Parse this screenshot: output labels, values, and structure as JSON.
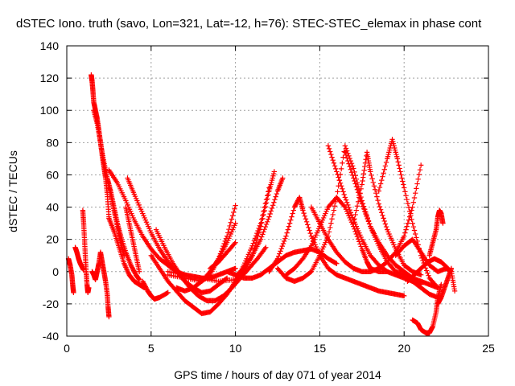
{
  "chart_data": {
    "type": "scatter",
    "title": "dSTEC Iono. truth (savo, Lon=321, Lat=-12, h=76): STEC-STEC_elemax in phase cont",
    "xlabel": "GPS time / hours of day 071 of year 2014",
    "ylabel": "dSTEC  / TECUs",
    "xlim": [
      0,
      25
    ],
    "ylim": [
      -40,
      140
    ],
    "xticks": [
      0,
      5,
      10,
      15,
      20,
      25
    ],
    "yticks": [
      -40,
      -20,
      0,
      20,
      40,
      60,
      80,
      100,
      120,
      140
    ],
    "grid": true,
    "marker": "+",
    "color": "#ff0000",
    "series": [
      {
        "x": [
          0.1,
          0.2,
          0.3,
          0.35,
          0.4
        ],
        "y": [
          8,
          4,
          -2,
          -8,
          -13
        ]
      },
      {
        "x": [
          0.5,
          0.6,
          0.7,
          0.8,
          0.9,
          1.0
        ],
        "y": [
          15,
          12,
          8,
          5,
          3,
          1
        ]
      },
      {
        "x": [
          0.95,
          1.0,
          1.05,
          1.1,
          1.15,
          1.2,
          1.25,
          1.3
        ],
        "y": [
          38,
          30,
          20,
          10,
          0,
          -8,
          -13,
          -10
        ]
      },
      {
        "x": [
          1.45,
          1.5,
          1.55,
          1.6,
          1.7,
          1.8,
          1.9,
          2.0,
          2.1,
          2.2,
          2.3,
          2.4,
          2.5
        ],
        "y": [
          122,
          118,
          112,
          105,
          100,
          95,
          88,
          80,
          72,
          65,
          58,
          48,
          34
        ]
      },
      {
        "x": [
          1.6,
          1.8,
          2.0,
          2.2,
          2.4,
          2.6,
          2.8,
          3.0,
          3.2,
          3.4
        ],
        "y": [
          100,
          92,
          80,
          68,
          58,
          48,
          38,
          28,
          18,
          10
        ]
      },
      {
        "x": [
          1.5,
          1.6,
          1.7,
          1.8,
          1.9,
          2.0,
          2.1,
          2.2,
          2.3,
          2.4,
          2.45,
          2.5
        ],
        "y": [
          0,
          -2,
          -5,
          0,
          5,
          12,
          6,
          0,
          -6,
          -14,
          -22,
          -28
        ]
      },
      {
        "x": [
          2.5,
          2.8,
          3.1,
          3.4,
          3.7,
          4.0,
          4.3,
          4.6
        ],
        "y": [
          33,
          25,
          15,
          5,
          -2,
          -6,
          -8,
          -10
        ]
      },
      {
        "x": [
          2.4,
          2.6,
          2.8,
          3.0,
          3.2,
          3.5,
          3.8,
          4.1,
          4.3
        ],
        "y": [
          58,
          50,
          40,
          30,
          22,
          12,
          4,
          -2,
          -5
        ]
      },
      {
        "x": [
          3.5,
          3.7,
          3.9,
          4.1,
          4.3
        ],
        "y": [
          40,
          30,
          20,
          10,
          0
        ]
      },
      {
        "x": [
          4.5,
          4.8,
          5.0,
          5.2,
          5.5,
          6.0
        ],
        "y": [
          -6,
          -12,
          -15,
          -17,
          -16,
          -13
        ]
      },
      {
        "x": [
          2.5,
          3.0,
          3.5,
          4.0,
          4.5,
          5.0,
          5.5,
          6.0,
          6.5,
          7.0,
          7.5,
          8.0,
          8.5,
          9.0,
          9.5,
          10.0
        ],
        "y": [
          63,
          55,
          44,
          32,
          22,
          14,
          8,
          4,
          0,
          -2,
          -3,
          -4,
          -4,
          -2,
          0,
          2
        ]
      },
      {
        "x": [
          3.6,
          4.0,
          4.5,
          5.0,
          5.5,
          6.0,
          6.5,
          7.0,
          7.5,
          8.0,
          8.5,
          9.0,
          9.5
        ],
        "y": [
          58,
          48,
          36,
          24,
          14,
          6,
          0,
          -6,
          -10,
          -13,
          -12,
          -8,
          -4
        ]
      },
      {
        "x": [
          5.3,
          5.8,
          6.3,
          6.8,
          7.3,
          7.8,
          8.3,
          8.8,
          9.3,
          9.8,
          10.3,
          10.8,
          11.3,
          11.8
        ],
        "y": [
          26,
          15,
          5,
          -3,
          -10,
          -15,
          -18,
          -18,
          -15,
          -10,
          -4,
          2,
          8,
          15
        ]
      },
      {
        "x": [
          5.0,
          5.5,
          6.0,
          6.5,
          7.0,
          7.5,
          8.0,
          8.5,
          9.0,
          9.5,
          10.0,
          10.5,
          11.0,
          11.5,
          12.0
        ],
        "y": [
          10,
          2,
          -6,
          -12,
          -18,
          -22,
          -26,
          -25,
          -20,
          -14,
          -6,
          4,
          16,
          30,
          52
        ]
      },
      {
        "x": [
          6.5,
          7.0,
          7.5,
          8.0,
          8.5,
          9.0,
          9.5,
          10.0
        ],
        "y": [
          -10,
          -12,
          -10,
          -6,
          0,
          8,
          18,
          30
        ]
      },
      {
        "x": [
          8.5,
          9.0,
          9.5,
          10.0
        ],
        "y": [
          2,
          6,
          12,
          18
        ]
      },
      {
        "x": [
          6.0,
          7.0,
          8.0,
          8.5,
          9.0,
          9.5,
          10.0
        ],
        "y": [
          -2,
          -4,
          -6,
          -2,
          8,
          22,
          41
        ]
      },
      {
        "x": [
          6.0,
          7.0,
          8.0,
          9.0,
          10.0,
          10.5,
          11.0,
          11.5,
          12.0,
          12.3
        ],
        "y": [
          0,
          -2,
          -4,
          -6,
          -5,
          0,
          10,
          28,
          50,
          62
        ]
      },
      {
        "x": [
          9.5,
          10.0,
          10.5,
          11.0,
          11.5,
          12.0,
          12.5,
          13.0,
          13.5,
          14.0,
          14.5,
          15.0,
          15.5,
          16.0
        ],
        "y": [
          0,
          -2,
          -4,
          -4,
          -2,
          2,
          6,
          10,
          12,
          13,
          14,
          12,
          8,
          5
        ]
      },
      {
        "x": [
          10.0,
          10.5,
          11.0,
          11.5,
          12.0,
          12.5,
          12.8
        ],
        "y": [
          -3,
          2,
          10,
          20,
          34,
          50,
          58
        ]
      },
      {
        "x": [
          12.5,
          13.0,
          13.5,
          14.0,
          14.5,
          15.0,
          15.5,
          16.0,
          16.5,
          17.0,
          17.5,
          18.0,
          18.5,
          19.0,
          19.5,
          20.0,
          20.5,
          21.0,
          21.5,
          22.0
        ],
        "y": [
          2,
          -4,
          -6,
          -4,
          0,
          10,
          22,
          46,
          78,
          64,
          44,
          28,
          16,
          6,
          0,
          -2,
          -6,
          -10,
          -14,
          -16
        ]
      },
      {
        "x": [
          12.0,
          12.5,
          13.0,
          13.5,
          13.8,
          14.0,
          14.5,
          15.0,
          15.5,
          16.0,
          16.5,
          17.0,
          17.5,
          18.0,
          18.5,
          19.0,
          19.5,
          20.0
        ],
        "y": [
          0,
          8,
          22,
          40,
          46,
          38,
          22,
          10,
          2,
          -2,
          -4,
          -6,
          -8,
          -10,
          -12,
          -13,
          -14,
          -15
        ]
      },
      {
        "x": [
          13.0,
          13.5,
          14.0,
          14.5,
          15.0,
          15.5,
          16.0,
          16.5,
          17.0,
          17.5,
          17.8,
          18.0,
          18.5,
          19.0
        ],
        "y": [
          -2,
          2,
          8,
          16,
          28,
          40,
          46,
          40,
          28,
          14,
          6,
          2,
          0,
          0
        ]
      },
      {
        "x": [
          14.5,
          15.0,
          15.5,
          16.0,
          16.5,
          17.0,
          17.5,
          18.0,
          18.5,
          19.0,
          19.5,
          20.0,
          20.5,
          21.0
        ],
        "y": [
          40,
          30,
          20,
          12,
          6,
          2,
          0,
          0,
          2,
          6,
          12,
          22,
          40,
          66
        ]
      },
      {
        "x": [
          15.5,
          16.0,
          16.5,
          17.0,
          17.5,
          18.0,
          18.5,
          19.0,
          19.5,
          20.0,
          20.5,
          21.0
        ],
        "y": [
          78,
          62,
          46,
          32,
          20,
          10,
          4,
          0,
          -2,
          -4,
          -6,
          -8
        ]
      },
      {
        "x": [
          16.5,
          17.0,
          17.5,
          18.0,
          18.5,
          19.0,
          19.5,
          20.0,
          20.5,
          21.0,
          21.5,
          22.0
        ],
        "y": [
          74,
          58,
          42,
          28,
          18,
          10,
          4,
          0,
          -4,
          -6,
          -8,
          -10
        ]
      },
      {
        "x": [
          17.0,
          17.5,
          17.8,
          18.0,
          18.5,
          19.0,
          19.5,
          20.0,
          20.5,
          21.0
        ],
        "y": [
          30,
          54,
          74,
          62,
          42,
          26,
          14,
          4,
          0,
          -2
        ]
      },
      {
        "x": [
          18.5,
          19.0,
          19.3,
          19.6,
          20.0,
          20.5,
          21.0,
          21.5,
          22.0
        ],
        "y": [
          50,
          70,
          82,
          70,
          52,
          30,
          10,
          -4,
          -10
        ]
      },
      {
        "x": [
          19.5,
          20.0,
          20.5,
          21.0,
          21.5,
          22.0,
          22.5,
          22.8,
          23.0
        ],
        "y": [
          10,
          16,
          20,
          12,
          4,
          0,
          2,
          0,
          -12
        ]
      },
      {
        "x": [
          20.5,
          20.8,
          21.0,
          21.3,
          21.5,
          21.7,
          21.9,
          22.0,
          22.2
        ],
        "y": [
          -30,
          -32,
          -36,
          -38,
          -38,
          -34,
          -25,
          -16,
          -8
        ]
      },
      {
        "x": [
          20.2,
          20.6,
          21.0,
          21.4,
          21.8,
          22.2,
          22.6
        ],
        "y": [
          -6,
          -2,
          2,
          6,
          8,
          6,
          2
        ]
      },
      {
        "x": [
          21.5,
          21.7,
          21.9,
          22.0,
          22.1,
          22.2,
          22.3
        ],
        "y": [
          10,
          18,
          26,
          34,
          38,
          36,
          30
        ]
      },
      {
        "x": [
          22.0,
          22.2,
          22.4,
          22.6,
          22.8
        ],
        "y": [
          -20,
          -16,
          -10,
          -4,
          2
        ]
      }
    ]
  }
}
